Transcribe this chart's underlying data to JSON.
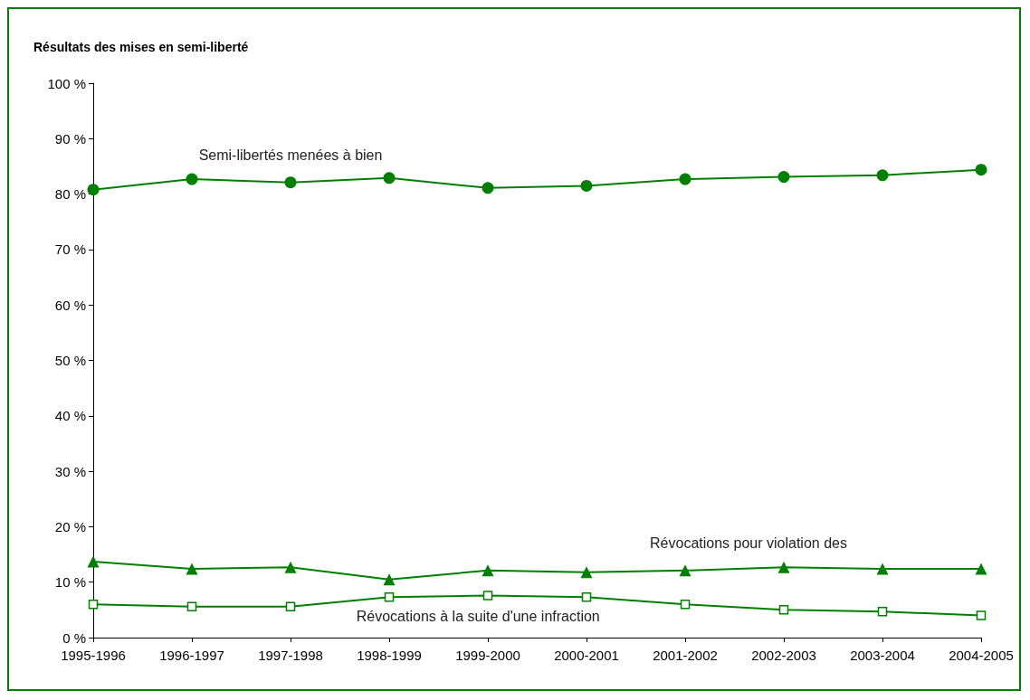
{
  "chart_data": {
    "type": "line",
    "title": "Résultats des mises en semi-liberté",
    "categories": [
      "1995-1996",
      "1996-1997",
      "1997-1998",
      "1998-1999",
      "1999-2000",
      "2000-2001",
      "2001-2002",
      "2002-2003",
      "2003-2004",
      "2004-2005"
    ],
    "series": [
      {
        "name": "Semi-libertés menées à bien",
        "color": "#008000",
        "marker": "circle",
        "values": [
          80.8,
          82.7,
          82.1,
          82.9,
          81.1,
          81.5,
          82.7,
          83.1,
          83.4,
          84.4
        ]
      },
      {
        "name": "Révocations pour violation des",
        "color": "#008000",
        "marker": "triangle",
        "values": [
          13.7,
          12.4,
          12.7,
          10.5,
          12.1,
          11.8,
          12.1,
          12.7,
          12.4,
          12.4
        ]
      },
      {
        "name": "Révocations à la suite d'une infraction",
        "color": "#008000",
        "marker": "square",
        "values": [
          6.0,
          5.6,
          5.6,
          7.3,
          7.6,
          7.3,
          6.0,
          5.0,
          4.7,
          4.0
        ]
      }
    ],
    "ylim": [
      0,
      100
    ],
    "yticks": [
      {
        "value": 0,
        "label": "0 %"
      },
      {
        "value": 10,
        "label": "10 %"
      },
      {
        "value": 20,
        "label": "20 %"
      },
      {
        "value": 30,
        "label": "30 %"
      },
      {
        "value": 40,
        "label": "40 %"
      },
      {
        "value": 50,
        "label": "50 %"
      },
      {
        "value": 60,
        "label": "60 %"
      },
      {
        "value": 70,
        "label": "70 %"
      },
      {
        "value": 80,
        "label": "80 %"
      },
      {
        "value": 90,
        "label": "90 %"
      },
      {
        "value": 100,
        "label": "100 %"
      }
    ],
    "grid": false,
    "legend": false,
    "line_style": "solid"
  }
}
